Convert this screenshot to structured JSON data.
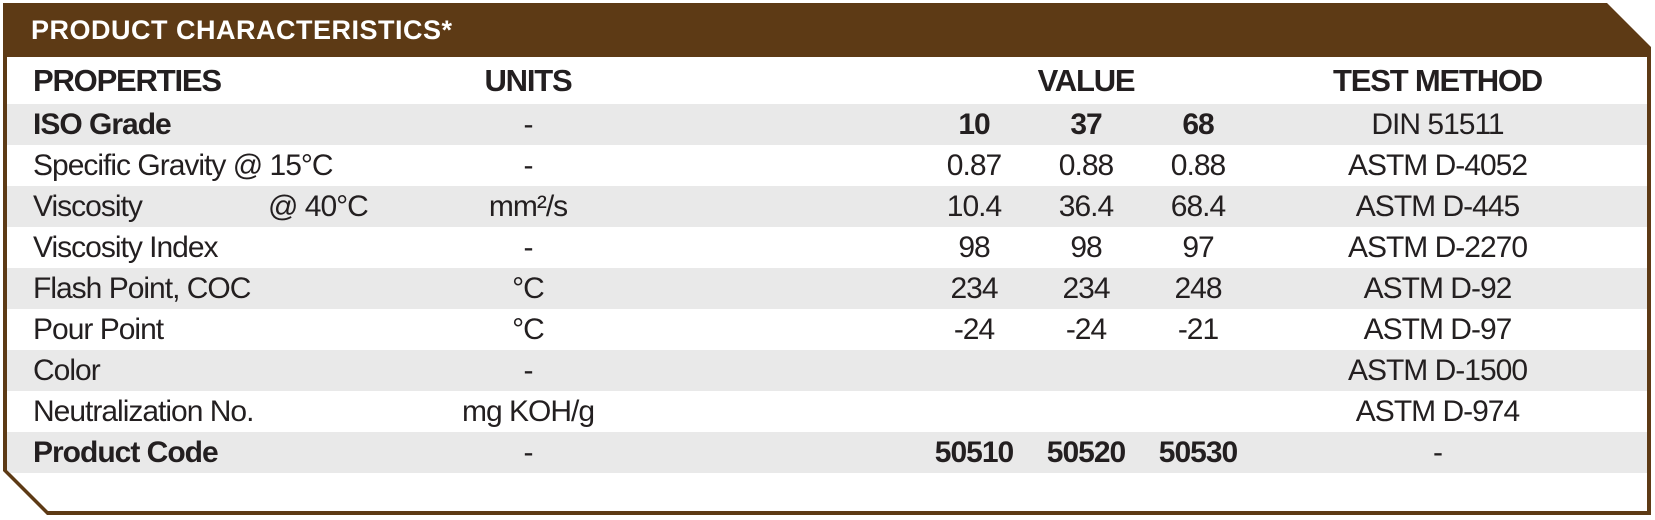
{
  "panel": {
    "title": "PRODUCT CHARACTERISTICS*",
    "colors": {
      "brown": "#5d3a15",
      "stripe": "#e9e9e9",
      "text": "#231f20"
    }
  },
  "table": {
    "headers": {
      "properties": "PROPERTIES",
      "units": "UNITS",
      "value": "VALUE",
      "test_method": "TEST METHOD"
    },
    "rows": [
      {
        "property": "ISO Grade",
        "units": "-",
        "values": [
          "10",
          "37",
          "68"
        ],
        "test": "DIN 51511",
        "bold": true
      },
      {
        "property": "Specific Gravity @ 15°C",
        "units": "-",
        "values": [
          "0.87",
          "0.88",
          "0.88"
        ],
        "test": "ASTM D-4052"
      },
      {
        "property": "Viscosity",
        "property2": "@ 40°C",
        "units": "mm²/s",
        "values": [
          "10.4",
          "36.4",
          "68.4"
        ],
        "test": "ASTM D-445"
      },
      {
        "property": "Viscosity Index",
        "units": "-",
        "values": [
          "98",
          "98",
          "97"
        ],
        "test": "ASTM D-2270"
      },
      {
        "property": "Flash Point, COC",
        "units": "°C",
        "values": [
          "234",
          "234",
          "248"
        ],
        "test": "ASTM D-92"
      },
      {
        "property": "Pour Point",
        "units": "°C",
        "values": [
          "-24",
          "-24",
          "-21"
        ],
        "test": "ASTM D-97"
      },
      {
        "property": "Color",
        "units": "-",
        "values": [
          "",
          "",
          ""
        ],
        "test": "ASTM D-1500"
      },
      {
        "property": "Neutralization No.",
        "units": "mg KOH/g",
        "values": [
          "",
          "",
          ""
        ],
        "test": "ASTM D-974"
      },
      {
        "property": "Product Code",
        "units": "-",
        "values": [
          "50510",
          "50520",
          "50530"
        ],
        "test": "-",
        "bold": true
      }
    ]
  }
}
